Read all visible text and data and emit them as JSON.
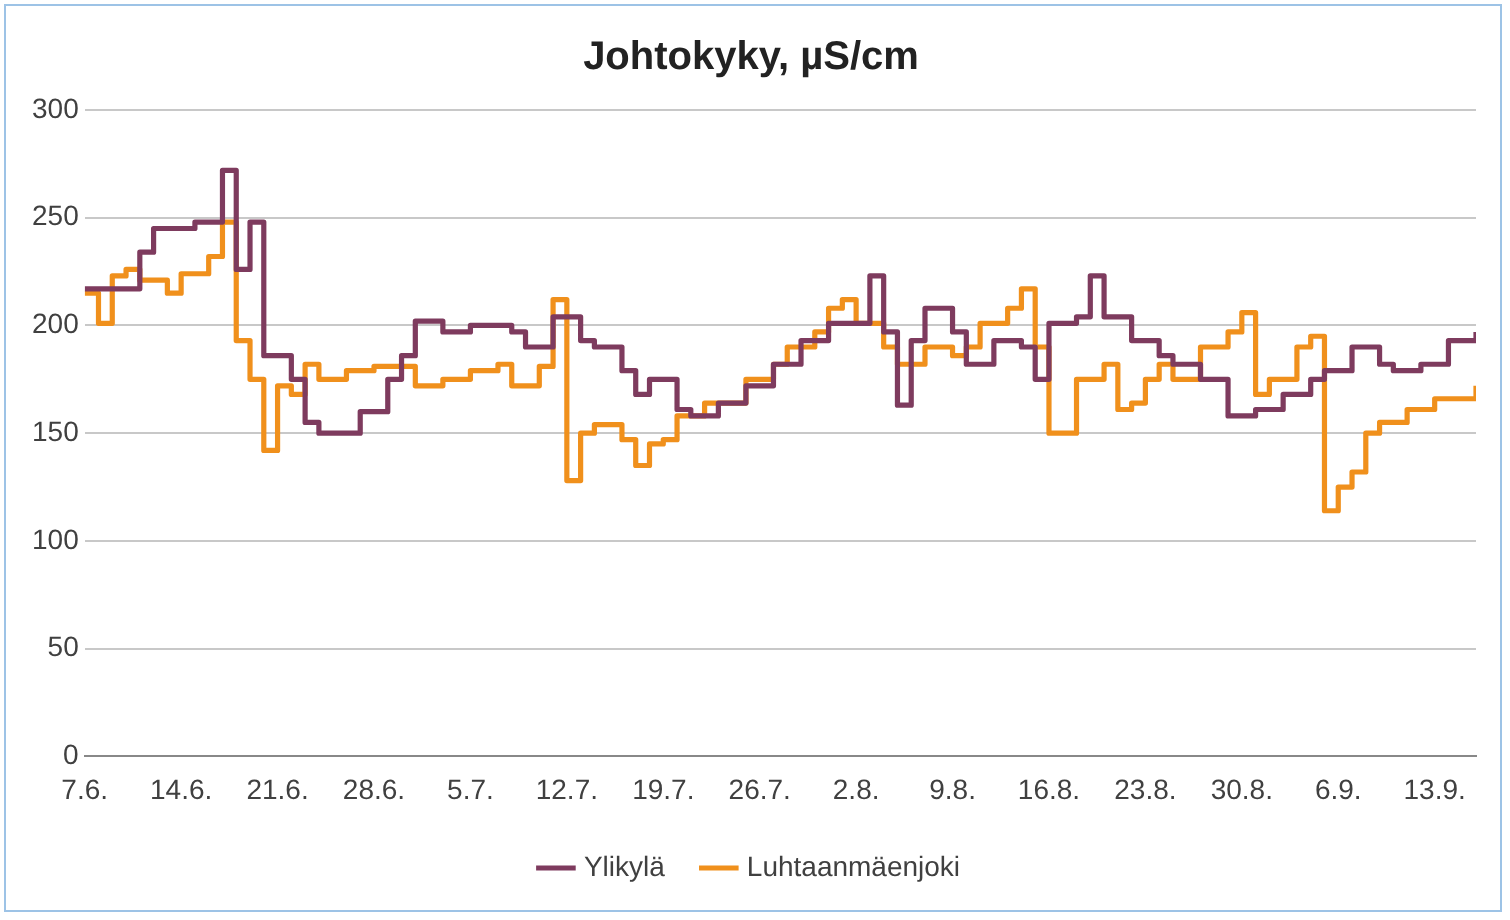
{
  "chart_data": {
    "type": "step",
    "title": "Johtokyky, µS/cm",
    "xlim": [
      "--06-07",
      "--09-16"
    ],
    "xticks": [
      {
        "value": "--06-07",
        "label": "7.6."
      },
      {
        "value": "--06-14",
        "label": "14.6."
      },
      {
        "value": "--06-21",
        "label": "21.6."
      },
      {
        "value": "--06-28",
        "label": "28.6."
      },
      {
        "value": "--07-05",
        "label": "5.7."
      },
      {
        "value": "--07-12",
        "label": "12.7."
      },
      {
        "value": "--07-19",
        "label": "19.7."
      },
      {
        "value": "--07-26",
        "label": "26.7."
      },
      {
        "value": "--08-02",
        "label": "2.8."
      },
      {
        "value": "--08-09",
        "label": "9.8."
      },
      {
        "value": "--08-16",
        "label": "16.8."
      },
      {
        "value": "--08-23",
        "label": "23.8."
      },
      {
        "value": "--08-30",
        "label": "30.8."
      },
      {
        "value": "--09-06",
        "label": "6.9."
      },
      {
        "value": "--09-13",
        "label": "13.9."
      }
    ],
    "ylim": [
      0,
      300
    ],
    "yticks": [
      0,
      50,
      100,
      150,
      200,
      250,
      300
    ],
    "grid": "y",
    "legend": "bottom",
    "series": [
      {
        "name": "Ylikylä",
        "color": "#7e3b5e",
        "x": [
          "--06-07",
          "--06-11",
          "--06-12",
          "--06-15",
          "--06-17",
          "--06-18",
          "--06-19",
          "--06-20",
          "--06-22",
          "--06-23",
          "--06-24",
          "--06-26",
          "--06-27",
          "--06-29",
          "--06-30",
          "--07-01",
          "--07-03",
          "--07-05",
          "--07-07",
          "--07-08",
          "--07-09",
          "--07-11",
          "--07-13",
          "--07-14",
          "--07-16",
          "--07-17",
          "--07-18",
          "--07-20",
          "--07-21",
          "--07-23",
          "--07-25",
          "--07-27",
          "--07-29",
          "--07-31",
          "--08-03",
          "--08-04",
          "--08-05",
          "--08-06",
          "--08-07",
          "--08-09",
          "--08-10",
          "--08-12",
          "--08-14",
          "--08-15",
          "--08-16",
          "--08-18",
          "--08-19",
          "--08-20",
          "--08-21",
          "--08-22",
          "--08-24",
          "--08-25",
          "--08-27",
          "--08-29",
          "--08-31",
          "--09-02",
          "--09-04",
          "--09-05",
          "--09-07",
          "--09-09",
          "--09-10",
          "--09-12",
          "--09-14",
          "--09-16"
        ],
        "values": [
          217,
          234,
          245,
          248,
          272,
          226,
          248,
          186,
          175,
          155,
          150,
          150,
          160,
          175,
          186,
          202,
          197,
          200,
          200,
          197,
          190,
          204,
          193,
          190,
          179,
          168,
          175,
          161,
          158,
          164,
          172,
          182,
          193,
          201,
          223,
          197,
          163,
          193,
          208,
          197,
          182,
          193,
          190,
          175,
          201,
          204,
          223,
          204,
          204,
          193,
          186,
          182,
          175,
          158,
          161,
          168,
          175,
          179,
          190,
          182,
          179,
          182,
          193,
          197
        ]
      },
      {
        "name": "Luhtaanmäenjoki",
        "color": "#f0901c",
        "x": [
          "--06-07",
          "--06-08",
          "--06-09",
          "--06-10",
          "--06-11",
          "--06-13",
          "--06-14",
          "--06-16",
          "--06-17",
          "--06-18",
          "--06-19",
          "--06-20",
          "--06-21",
          "--06-22",
          "--06-23",
          "--06-24",
          "--06-26",
          "--06-28",
          "--06-30",
          "--07-01",
          "--07-03",
          "--07-05",
          "--07-07",
          "--07-08",
          "--07-10",
          "--07-11",
          "--07-12",
          "--07-13",
          "--07-14",
          "--07-16",
          "--07-17",
          "--07-18",
          "--07-19",
          "--07-20",
          "--07-22",
          "--07-25",
          "--07-27",
          "--07-28",
          "--07-30",
          "--07-31",
          "--08-01",
          "--08-02",
          "--08-04",
          "--08-05",
          "--08-07",
          "--08-09",
          "--08-10",
          "--08-11",
          "--08-13",
          "--08-14",
          "--08-15",
          "--08-16",
          "--08-17",
          "--08-18",
          "--08-19",
          "--08-20",
          "--08-21",
          "--08-22",
          "--08-23",
          "--08-24",
          "--08-25",
          "--08-27",
          "--08-29",
          "--08-30",
          "--08-31",
          "--09-01",
          "--09-03",
          "--09-04",
          "--09-05",
          "--09-06",
          "--09-07",
          "--09-08",
          "--09-09",
          "--09-11",
          "--09-13",
          "--09-16"
        ],
        "values": [
          215,
          201,
          223,
          226,
          221,
          215,
          224,
          232,
          248,
          193,
          175,
          142,
          172,
          168,
          182,
          175,
          179,
          181,
          181,
          172,
          175,
          179,
          182,
          172,
          181,
          212,
          128,
          150,
          154,
          147,
          135,
          145,
          147,
          158,
          164,
          175,
          182,
          190,
          197,
          208,
          212,
          201,
          190,
          182,
          190,
          186,
          190,
          201,
          208,
          217,
          190,
          150,
          150,
          175,
          175,
          182,
          161,
          164,
          175,
          182,
          175,
          190,
          197,
          206,
          168,
          175,
          190,
          195,
          114,
          125,
          132,
          150,
          155,
          161,
          166,
          172
        ]
      }
    ]
  }
}
